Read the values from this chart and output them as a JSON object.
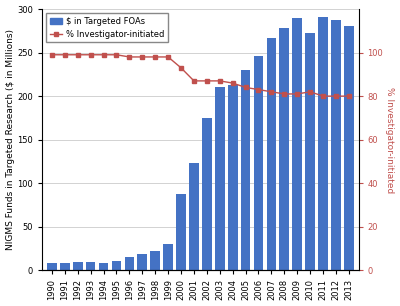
{
  "years": [
    1990,
    1991,
    1992,
    1993,
    1994,
    1995,
    1996,
    1997,
    1998,
    1999,
    2000,
    2001,
    2002,
    2003,
    2004,
    2005,
    2006,
    2007,
    2008,
    2009,
    2010,
    2011,
    2012,
    2013
  ],
  "bar_values": [
    8,
    8,
    9,
    9,
    8,
    11,
    15,
    19,
    22,
    30,
    88,
    123,
    175,
    210,
    213,
    230,
    246,
    267,
    278,
    290,
    272,
    291,
    287,
    280
  ],
  "line_values": [
    99,
    99,
    99,
    99,
    99,
    99,
    98,
    98,
    98,
    98,
    93,
    87,
    87,
    87,
    86,
    84,
    83,
    82,
    81,
    81,
    82,
    80,
    80,
    80
  ],
  "bar_color": "#4472C4",
  "line_color": "#C0504D",
  "bar_label": "$ in Targeted FOAs",
  "line_label": "% Investigator-initiated",
  "ylabel_left": "NIGMS Funds in Targeted Research ($ in Millions)",
  "ylabel_right": "% Investigator-initiated",
  "ylim_left": [
    0,
    300
  ],
  "ylim_right": [
    0,
    120
  ],
  "yticks_left": [
    0,
    50,
    100,
    150,
    200,
    250,
    300
  ],
  "yticks_right": [
    0,
    20,
    40,
    60,
    80,
    100
  ],
  "background_color": "#FFFFFF",
  "grid_color": "#C0C0C0",
  "axis_fontsize": 6.5,
  "tick_fontsize": 6,
  "legend_fontsize": 6
}
